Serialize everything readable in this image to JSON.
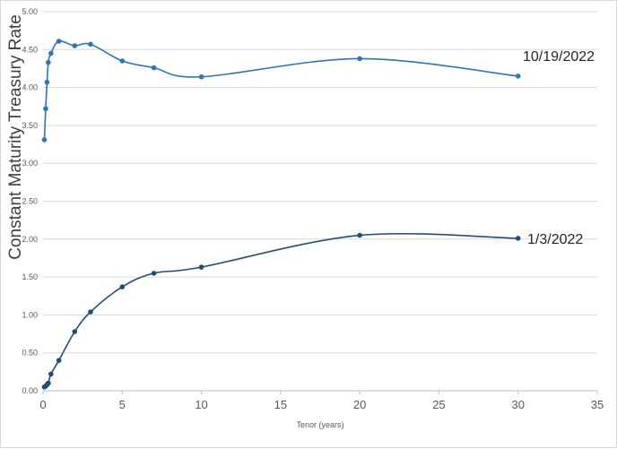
{
  "chart_data": {
    "type": "scatter",
    "title": "",
    "xlabel": "Tenor (years)",
    "ylabel": "Constant Maturity Treasury Rate",
    "xlim": [
      0,
      35
    ],
    "ylim": [
      0,
      5
    ],
    "x_ticks": [
      "0",
      "5",
      "10",
      "15",
      "20",
      "25",
      "30",
      "35"
    ],
    "y_ticks": [
      "0.00",
      "0.50",
      "1.00",
      "1.50",
      "2.00",
      "2.50",
      "3.00",
      "3.50",
      "4.00",
      "4.50",
      "5.00"
    ],
    "grid": "horizontal",
    "smooth_lines": true,
    "series": [
      {
        "name": "10/19/2022",
        "color": "#2e75b6",
        "points": [
          [
            0.083,
            3.31
          ],
          [
            0.167,
            3.72
          ],
          [
            0.25,
            4.07
          ],
          [
            0.333,
            4.33
          ],
          [
            0.5,
            4.45
          ],
          [
            1,
            4.61
          ],
          [
            2,
            4.55
          ],
          [
            3,
            4.57
          ],
          [
            5,
            4.35
          ],
          [
            7,
            4.26
          ],
          [
            10,
            4.14
          ],
          [
            20,
            4.38
          ],
          [
            30,
            4.15
          ]
        ]
      },
      {
        "name": "1/3/2022",
        "color": "#1f4e79",
        "points": [
          [
            0.083,
            0.05
          ],
          [
            0.167,
            0.06
          ],
          [
            0.25,
            0.08
          ],
          [
            0.333,
            0.1
          ],
          [
            0.5,
            0.22
          ],
          [
            1,
            0.4
          ],
          [
            2,
            0.78
          ],
          [
            3,
            1.04
          ],
          [
            5,
            1.37
          ],
          [
            7,
            1.55
          ],
          [
            10,
            1.63
          ],
          [
            20,
            2.05
          ],
          [
            30,
            2.01
          ]
        ]
      }
    ]
  }
}
